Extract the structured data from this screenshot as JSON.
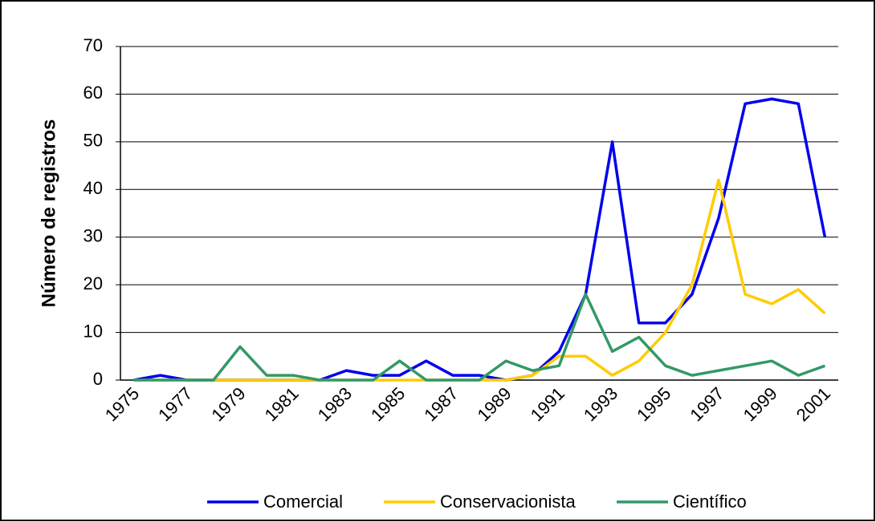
{
  "chart_data": {
    "type": "line",
    "y_label": "Número de registros",
    "categories": [
      "1975",
      null,
      "1977",
      null,
      "1979",
      null,
      "1981",
      null,
      "1983",
      null,
      "1985",
      null,
      "1987",
      null,
      "1989",
      null,
      "1991",
      null,
      "1993",
      null,
      "1995",
      null,
      "1997",
      null,
      "1999",
      null,
      "2001"
    ],
    "series": [
      {
        "name": "Comercial",
        "color": "#0000ee",
        "values": [
          0,
          1,
          0,
          0,
          0,
          0,
          0,
          0,
          2,
          1,
          1,
          4,
          1,
          1,
          0,
          1,
          6,
          18,
          50,
          12,
          12,
          18,
          34,
          58,
          59,
          58,
          30
        ]
      },
      {
        "name": "Conservacionista",
        "color": "#ffcc00",
        "values": [
          0,
          0,
          0,
          0,
          0,
          0,
          0,
          0,
          0,
          0,
          0,
          0,
          0,
          0,
          0,
          1,
          5,
          5,
          1,
          4,
          10,
          20,
          42,
          18,
          16,
          19,
          14
        ]
      },
      {
        "name": "Científico",
        "color": "#339966",
        "values": [
          0,
          0,
          0,
          0,
          7,
          1,
          1,
          0,
          0,
          0,
          4,
          0,
          0,
          0,
          4,
          2,
          3,
          18,
          6,
          9,
          3,
          1,
          2,
          3,
          4,
          1,
          3
        ]
      }
    ],
    "ylim": [
      0,
      70
    ],
    "yticks": [
      0,
      10,
      20,
      30,
      40,
      50,
      60,
      70
    ],
    "grid": true,
    "legend": "bottom"
  }
}
